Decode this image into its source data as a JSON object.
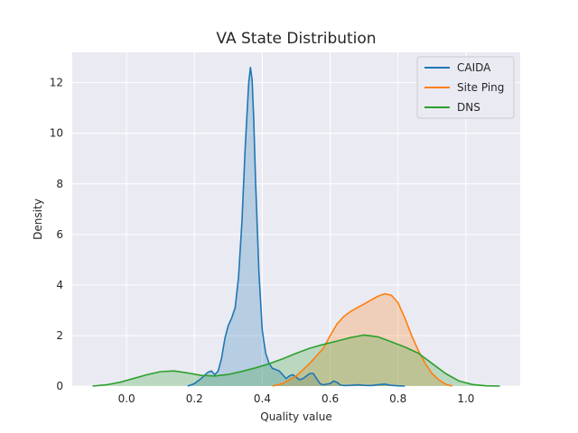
{
  "chart_data": {
    "type": "area",
    "title": "VA State Distribution",
    "xlabel": "Quality value",
    "ylabel": "Density",
    "xlim": [
      -0.16,
      1.16
    ],
    "ylim": [
      0,
      13.2
    ],
    "xticks": [
      0.0,
      0.2,
      0.4,
      0.6,
      0.8,
      1.0
    ],
    "xtick_labels": [
      "0.0",
      "0.2",
      "0.4",
      "0.6",
      "0.8",
      "1.0"
    ],
    "yticks": [
      0,
      2,
      4,
      6,
      8,
      10,
      12
    ],
    "ytick_labels": [
      "0",
      "2",
      "4",
      "6",
      "8",
      "10",
      "12"
    ],
    "grid": true,
    "legend_position": "top-right",
    "series": [
      {
        "name": "CAIDA",
        "color": "#1f77b4",
        "x": [
          0.18,
          0.2,
          0.22,
          0.24,
          0.25,
          0.26,
          0.27,
          0.28,
          0.29,
          0.3,
          0.31,
          0.32,
          0.33,
          0.34,
          0.35,
          0.36,
          0.365,
          0.37,
          0.375,
          0.38,
          0.39,
          0.4,
          0.41,
          0.42,
          0.43,
          0.44,
          0.45,
          0.46,
          0.47,
          0.48,
          0.49,
          0.5,
          0.51,
          0.52,
          0.53,
          0.54,
          0.55,
          0.56,
          0.57,
          0.58,
          0.59,
          0.6,
          0.61,
          0.62,
          0.63,
          0.64,
          0.66,
          0.68,
          0.7,
          0.72,
          0.74,
          0.76,
          0.78,
          0.8,
          0.82
        ],
        "y": [
          0.0,
          0.1,
          0.3,
          0.55,
          0.6,
          0.45,
          0.6,
          1.1,
          1.9,
          2.4,
          2.7,
          3.1,
          4.3,
          6.5,
          9.5,
          12.0,
          12.6,
          12.1,
          10.5,
          8.2,
          4.5,
          2.2,
          1.3,
          0.9,
          0.7,
          0.65,
          0.6,
          0.45,
          0.3,
          0.4,
          0.45,
          0.35,
          0.25,
          0.3,
          0.4,
          0.5,
          0.5,
          0.3,
          0.1,
          0.05,
          0.08,
          0.1,
          0.2,
          0.15,
          0.05,
          0.02,
          0.03,
          0.05,
          0.03,
          0.02,
          0.05,
          0.08,
          0.03,
          0.01,
          0.0
        ]
      },
      {
        "name": "Site Ping",
        "color": "#ff7f0e",
        "x": [
          0.43,
          0.46,
          0.5,
          0.54,
          0.58,
          0.6,
          0.62,
          0.64,
          0.66,
          0.68,
          0.7,
          0.72,
          0.74,
          0.76,
          0.78,
          0.8,
          0.82,
          0.84,
          0.86,
          0.88,
          0.9,
          0.92,
          0.94,
          0.96
        ],
        "y": [
          0.0,
          0.1,
          0.4,
          0.9,
          1.5,
          2.0,
          2.45,
          2.75,
          2.95,
          3.1,
          3.25,
          3.4,
          3.55,
          3.65,
          3.6,
          3.3,
          2.7,
          2.0,
          1.4,
          0.9,
          0.5,
          0.25,
          0.08,
          0.0
        ]
      },
      {
        "name": "DNS",
        "color": "#2ca02c",
        "x": [
          -0.1,
          -0.06,
          -0.02,
          0.02,
          0.06,
          0.1,
          0.14,
          0.18,
          0.22,
          0.26,
          0.3,
          0.34,
          0.38,
          0.42,
          0.46,
          0.5,
          0.54,
          0.58,
          0.62,
          0.66,
          0.7,
          0.74,
          0.78,
          0.82,
          0.86,
          0.9,
          0.94,
          0.98,
          1.02,
          1.06,
          1.1
        ],
        "y": [
          0.0,
          0.05,
          0.15,
          0.3,
          0.45,
          0.57,
          0.6,
          0.52,
          0.42,
          0.4,
          0.46,
          0.58,
          0.72,
          0.88,
          1.08,
          1.3,
          1.5,
          1.65,
          1.78,
          1.92,
          2.02,
          1.95,
          1.75,
          1.55,
          1.3,
          0.9,
          0.5,
          0.2,
          0.06,
          0.01,
          0.0
        ]
      }
    ]
  }
}
